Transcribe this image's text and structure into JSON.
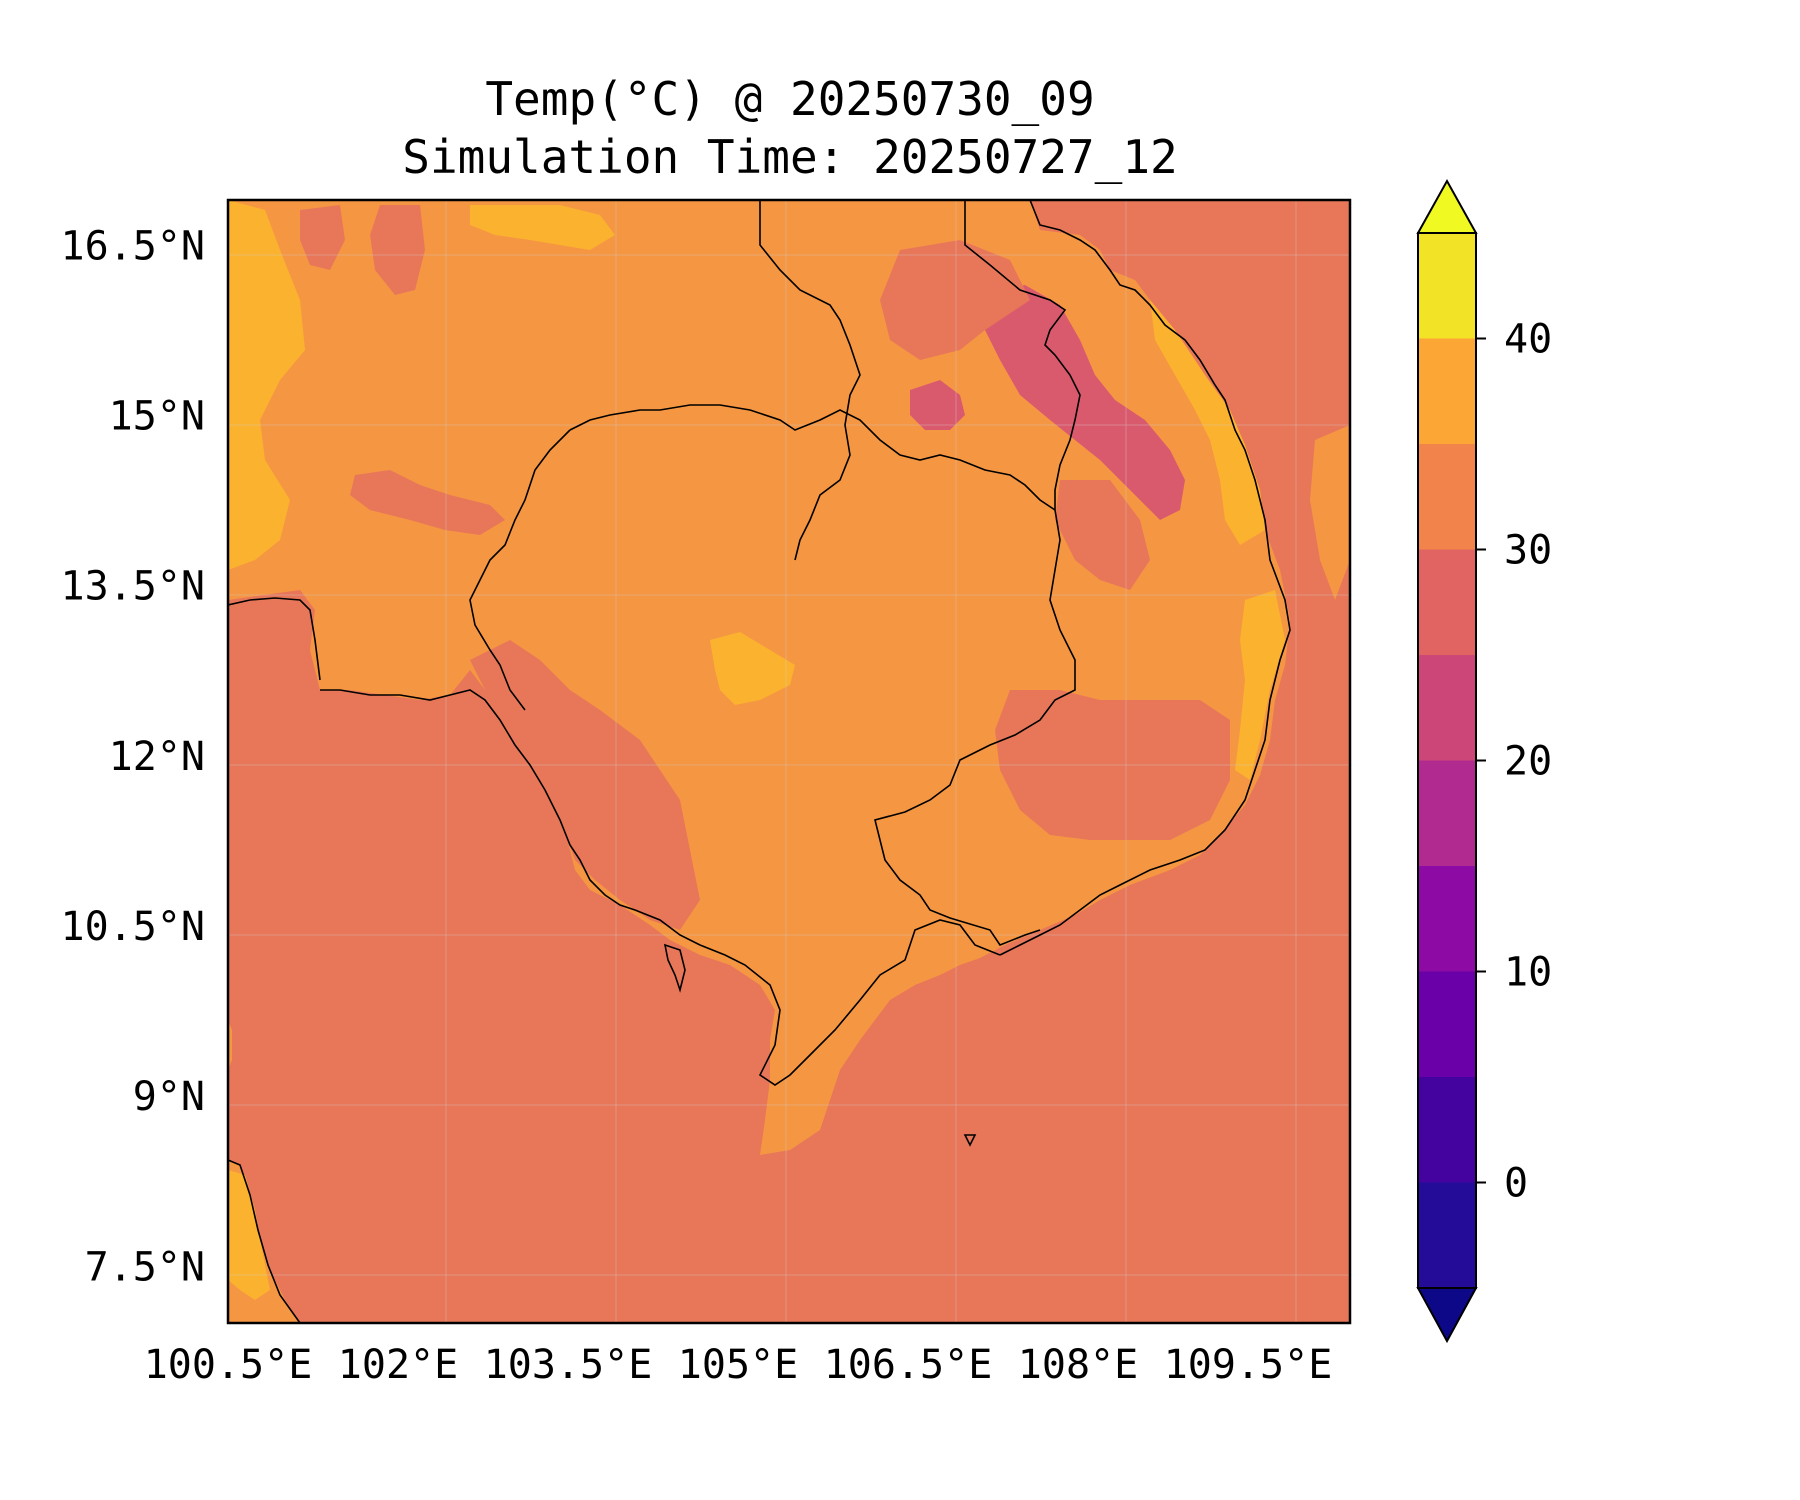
{
  "title": {
    "line1": "Temp(°C) @ 20250730_09",
    "line2": "Simulation Time: 20250727_12"
  },
  "map": {
    "x_ticks": [
      "100.5°E",
      "102°E",
      "103.5°E",
      "105°E",
      "106.5°E",
      "108°E",
      "109.5°E"
    ],
    "y_ticks": [
      "16.5°N",
      "15°N",
      "13.5°N",
      "12°N",
      "10.5°N",
      "9°N",
      "7.5°N"
    ],
    "lon_range": [
      100.5,
      110.4
    ],
    "lat_range": [
      7.0,
      16.9
    ],
    "colors": {
      "sea": "#E87759",
      "land": "#F59643",
      "cool": "#DA5A6D",
      "hot": "#FBB22F",
      "coast": "#000000"
    }
  },
  "colorbar": {
    "ticks": [
      "40",
      "30",
      "20",
      "10",
      "0"
    ],
    "levels": [
      -5,
      0,
      5,
      10,
      15,
      20,
      25,
      30,
      35,
      40,
      45
    ],
    "colors": [
      "#240C99",
      "#44039E",
      "#6A00A8",
      "#8E0AA5",
      "#B12A90",
      "#CC4778",
      "#E16462",
      "#F2844B",
      "#FCA636",
      "#F3E326"
    ],
    "under_color": "#0D0887",
    "over_color": "#F0F921",
    "extend": "both"
  }
}
